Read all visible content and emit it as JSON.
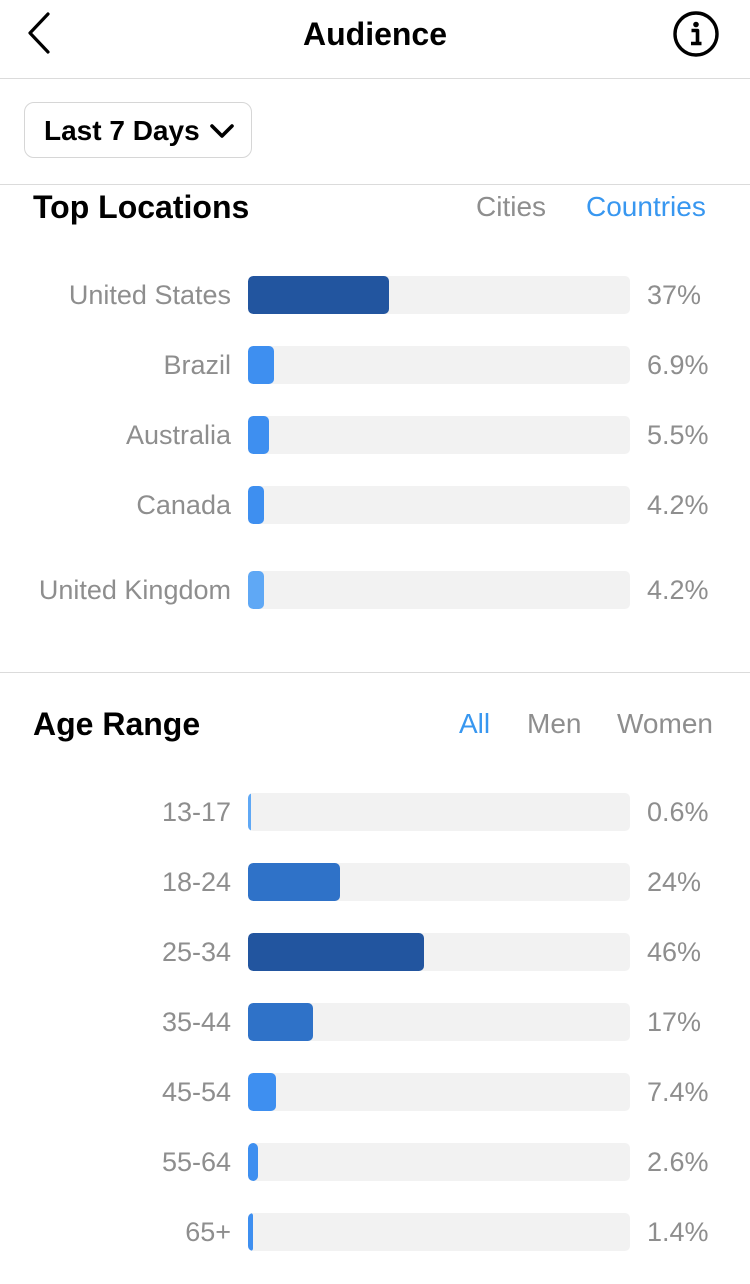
{
  "header": {
    "title": "Audience",
    "back_icon": "chevron-left-icon",
    "info_icon": "info-icon"
  },
  "date_range": {
    "label": "Last 7 Days",
    "icon": "chevron-down-icon"
  },
  "top_locations": {
    "title": "Top Locations",
    "tabs": [
      {
        "label": "Cities",
        "active": false
      },
      {
        "label": "Countries",
        "active": true
      }
    ],
    "rows": [
      {
        "label": "United States",
        "value": "37%",
        "fraction": 0.37,
        "color": "#22559f"
      },
      {
        "label": "Brazil",
        "value": "6.9%",
        "fraction": 0.069,
        "color": "#3e8ff0"
      },
      {
        "label": "Australia",
        "value": "5.5%",
        "fraction": 0.055,
        "color": "#3e8ff0"
      },
      {
        "label": "Canada",
        "value": "4.2%",
        "fraction": 0.042,
        "color": "#3e8ff0"
      },
      {
        "label": "United Kingdom",
        "value": "4.2%",
        "fraction": 0.042,
        "color": "#5fa8f5"
      }
    ]
  },
  "age_range": {
    "title": "Age Range",
    "tabs": [
      {
        "label": "All",
        "active": true
      },
      {
        "label": "Men",
        "active": false
      },
      {
        "label": "Women",
        "active": false
      }
    ],
    "rows": [
      {
        "label": "13-17",
        "value": "0.6%",
        "fraction": 0.006,
        "color": "#5fa8f5"
      },
      {
        "label": "18-24",
        "value": "24%",
        "fraction": 0.24,
        "color": "#2f72c8"
      },
      {
        "label": "25-34",
        "value": "46%",
        "fraction": 0.46,
        "color": "#22559f"
      },
      {
        "label": "35-44",
        "value": "17%",
        "fraction": 0.17,
        "color": "#2f72c8"
      },
      {
        "label": "45-54",
        "value": "7.4%",
        "fraction": 0.074,
        "color": "#3e8ff0"
      },
      {
        "label": "55-64",
        "value": "2.6%",
        "fraction": 0.026,
        "color": "#3e8ff0"
      },
      {
        "label": "65+",
        "value": "1.4%",
        "fraction": 0.014,
        "color": "#3e8ff0"
      }
    ]
  },
  "colors": {
    "accent": "#3897f0",
    "muted_text": "#8e8e8e",
    "track": "#f2f2f2",
    "divider": "#dbdbdb"
  }
}
